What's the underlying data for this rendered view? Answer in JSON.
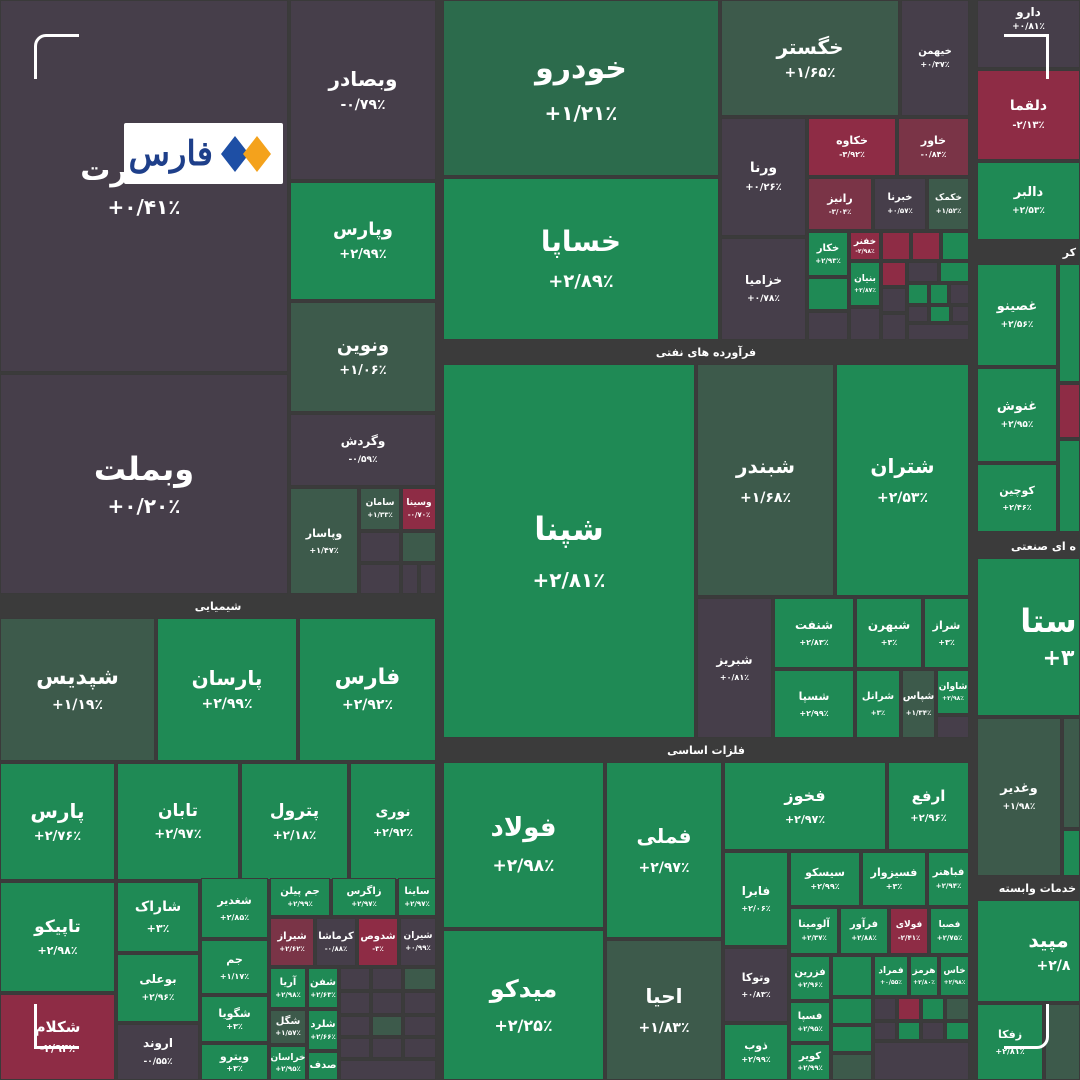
{
  "brand": {
    "name": "فارس",
    "colors": {
      "blue": "#1e4fa5",
      "orange": "#f4a21c"
    }
  },
  "colors": {
    "strong_green": "#1f8a55",
    "mid_green": "#2c6b4c",
    "dull_green": "#3d5a4b",
    "neutral": "#463e4a",
    "red": "#8e2c45"
  },
  "sections": {
    "petro": "فرآورده های نفتی",
    "chem": "شیمیایی",
    "metals": "فلزات اساسی",
    "industrial": "ه ای صنعتی",
    "services": "خدمات وابسته",
    "pharma": "کر"
  },
  "tiles": {
    "vbt": {
      "sym": "رت",
      "pct": "+۰/۴۱٪"
    },
    "vbsadr": {
      "sym": "وبصادر",
      "pct": "-۰/۷۹٪"
    },
    "vpars": {
      "sym": "وپارس",
      "pct": "+۲/۹۹٪"
    },
    "vnovin": {
      "sym": "ونوین",
      "pct": "+۱/۰۶٪"
    },
    "vkardesh": {
      "sym": "وگردش",
      "pct": "-۰/۵۹٪"
    },
    "vbmellat": {
      "sym": "وبملت",
      "pct": "+۰/۲۰٪"
    },
    "vpasar": {
      "sym": "وپاسار",
      "pct": "+۱/۴۷٪"
    },
    "saman": {
      "sym": "سامان",
      "pct": "+۱/۳۳٪"
    },
    "vsina": {
      "sym": "وسینا",
      "pct": "-۰/۷۰٪"
    },
    "khodro": {
      "sym": "خودرو",
      "pct": "+۱/۲۱٪"
    },
    "khsapa": {
      "sym": "خساپا",
      "pct": "+۲/۸۹٪"
    },
    "khgostar": {
      "sym": "خگستر",
      "pct": "+۱/۶۵٪"
    },
    "kheyhmen": {
      "sym": "خیهمن",
      "pct": "+۰/۳۷٪"
    },
    "varna": {
      "sym": "ورنا",
      "pct": "+۰/۲۶٪"
    },
    "khzamia": {
      "sym": "خزامیا",
      "pct": "+۰/۷۸٪"
    },
    "khkave": {
      "sym": "خکاوه",
      "pct": "-۳/۹۲٪"
    },
    "khavar": {
      "sym": "خاور",
      "pct": "-۰/۸۴٪"
    },
    "ranir": {
      "sym": "رانیز",
      "pct": "-۳/۰۴٪"
    },
    "khbrna": {
      "sym": "خبرنا",
      "pct": "+۰/۵۷٪"
    },
    "khkmk": {
      "sym": "خکمک",
      "pct": "+۱/۵۲٪"
    },
    "khkar": {
      "sym": "خکار",
      "pct": "+۲/۹۳٪"
    },
    "khfnr": {
      "sym": "خفنر",
      "pct": "-۲/۹۸٪"
    },
    "khbnian": {
      "sym": "بنیان",
      "pct": "+۲/۸۷٪"
    },
    "daru": {
      "sym": "دارو",
      "pct": "+۰/۸۱٪"
    },
    "dalqma": {
      "sym": "دلقما",
      "pct": "-۲/۱۳٪"
    },
    "dalbr": {
      "sym": "دالبر",
      "pct": "+۲/۵۳٪"
    },
    "ghsino": {
      "sym": "غصینو",
      "pct": "+۲/۵۶٪"
    },
    "ghnosh": {
      "sym": "غنوش",
      "pct": "+۲/۹۵٪"
    },
    "kuchin": {
      "sym": "کوچین",
      "pct": "+۲/۴۶٪"
    },
    "shepna": {
      "sym": "شپنا",
      "pct": "+۲/۸۱٪"
    },
    "shbndr": {
      "sym": "شبندر",
      "pct": "+۱/۶۸٪"
    },
    "shtran": {
      "sym": "شتران",
      "pct": "+۲/۵۳٪"
    },
    "shbriz": {
      "sym": "شبریز",
      "pct": "+۰/۸۱٪"
    },
    "shnft": {
      "sym": "شنفت",
      "pct": "+۲/۸۳٪"
    },
    "shhrn": {
      "sym": "شبهرن",
      "pct": "+۳٪"
    },
    "shraz": {
      "sym": "شراز",
      "pct": "+۳٪"
    },
    "shspa": {
      "sym": "شسپا",
      "pct": "+۲/۹۹٪"
    },
    "shranl": {
      "sym": "شرانل",
      "pct": "+۳٪"
    },
    "shpas": {
      "sym": "شپاس",
      "pct": "+۱/۳۴٪"
    },
    "shavan": {
      "sym": "شاوان",
      "pct": "+۲/۹۸٪"
    },
    "shpdis": {
      "sym": "شپدیس",
      "pct": "+۱/۱۹٪"
    },
    "parsan": {
      "sym": "پارسان",
      "pct": "+۲/۹۹٪"
    },
    "fars": {
      "sym": "فارس",
      "pct": "+۲/۹۲٪"
    },
    "pars": {
      "sym": "پارس",
      "pct": "+۲/۷۶٪"
    },
    "taban": {
      "sym": "تابان",
      "pct": "+۲/۹۷٪"
    },
    "ptrol": {
      "sym": "پترول",
      "pct": "+۲/۱۸٪"
    },
    "nuri": {
      "sym": "نوری",
      "pct": "+۲/۹۲٪"
    },
    "tapiko": {
      "sym": "تاپیکو",
      "pct": "+۲/۹۸٪"
    },
    "sharak": {
      "sym": "شاراک",
      "pct": "+۳٪"
    },
    "shgdir": {
      "sym": "شغدیر",
      "pct": "+۲/۸۵٪"
    },
    "jampilan": {
      "sym": "جم پیلن",
      "pct": "+۲/۹۹٪"
    },
    "zagros": {
      "sym": "زاگرس",
      "pct": "+۲/۹۷٪"
    },
    "saina": {
      "sym": "ساینا",
      "pct": "+۲/۹۷٪"
    },
    "jam": {
      "sym": "جم",
      "pct": "+۱/۱۷٪"
    },
    "shiraz": {
      "sym": "شیراز",
      "pct": "+۲/۶۲٪"
    },
    "kermasha": {
      "sym": "کرماشا",
      "pct": "-۰/۸۸٪"
    },
    "shdus": {
      "sym": "شدوص",
      "pct": "-۳٪"
    },
    "shiran": {
      "sym": "شیران",
      "pct": "+۰/۹۹٪"
    },
    "buali": {
      "sym": "بوعلی",
      "pct": "+۲/۹۶٪"
    },
    "shgoya": {
      "sym": "شگویا",
      "pct": "+۳٪"
    },
    "aria": {
      "sym": "آریا",
      "pct": "+۲/۹۸٪"
    },
    "shfn": {
      "sym": "شفن",
      "pct": "+۲/۶۳٪"
    },
    "shgl": {
      "sym": "شگل",
      "pct": "+۱/۵۷٪"
    },
    "shlrd": {
      "sym": "شلرد",
      "pct": "+۲/۶۶٪"
    },
    "shkolam": {
      "sym": "شکلام",
      "pct": "-۲/۹۴٪"
    },
    "arvand": {
      "sym": "اروند",
      "pct": "-۰/۵۵٪"
    },
    "vitro": {
      "sym": "ویترو",
      "pct": "+۳٪"
    },
    "khorasan": {
      "sym": "خراسان",
      "pct": "+۲/۹۵٪"
    },
    "sadaf": {
      "sym": "صدف",
      "pct": ""
    },
    "foulad": {
      "sym": "فولاد",
      "pct": "+۲/۹۸٪"
    },
    "femli": {
      "sym": "فملی",
      "pct": "+۲/۹۷٪"
    },
    "fkhoz": {
      "sym": "فخوز",
      "pct": "+۲/۹۷٪"
    },
    "arfa": {
      "sym": "ارفع",
      "pct": "+۲/۹۶٪"
    },
    "midko": {
      "sym": "میدکو",
      "pct": "+۲/۲۵٪"
    },
    "ahya": {
      "sym": "احیا",
      "pct": "+۱/۸۳٪"
    },
    "fabra": {
      "sym": "فابرا",
      "pct": "+۲/۰۶٪"
    },
    "sisko": {
      "sym": "سیسکو",
      "pct": "+۲/۹۹٪"
    },
    "fsizvar": {
      "sym": "فسیزوار",
      "pct": "+۳٪"
    },
    "fbahnr": {
      "sym": "فباهنر",
      "pct": "+۲/۹۴٪"
    },
    "alumina": {
      "sym": "آلومینا",
      "pct": "+۲/۳۷٪"
    },
    "frvar": {
      "sym": "فرآور",
      "pct": "+۲/۸۸٪"
    },
    "fuladi": {
      "sym": "فولای",
      "pct": "-۲/۴۱٪"
    },
    "fasa": {
      "sym": "فصبا",
      "pct": "+۲/۷۵٪"
    },
    "vtuka": {
      "sym": "وتوکا",
      "pct": "+۰/۸۳٪"
    },
    "fzrin": {
      "sym": "فزرین",
      "pct": "+۲/۹۶٪"
    },
    "fmrad": {
      "sym": "فمراد",
      "pct": "+۰/۵۵٪"
    },
    "hormoz": {
      "sym": "هرمز",
      "pct": "+۲/۸۰٪"
    },
    "khas": {
      "sym": "خاس",
      "pct": "+۲/۹۸٪"
    },
    "fspa": {
      "sym": "فسپا",
      "pct": "+۲/۹۵٪"
    },
    "zob": {
      "sym": "ذوب",
      "pct": "+۲/۹۹٪"
    },
    "kavir": {
      "sym": "کویر",
      "pct": "+۲/۹۹٪"
    },
    "vsta": {
      "sym": "ستا",
      "pct": "+۳"
    },
    "vghdir": {
      "sym": "وغدیر",
      "pct": "+۱/۹۸٪"
    },
    "hamrah": {
      "sym": "مپید",
      "pct": "+۲/۸"
    },
    "zfka": {
      "sym": "زفکا",
      "pct": "+۲/۸۱٪"
    }
  }
}
